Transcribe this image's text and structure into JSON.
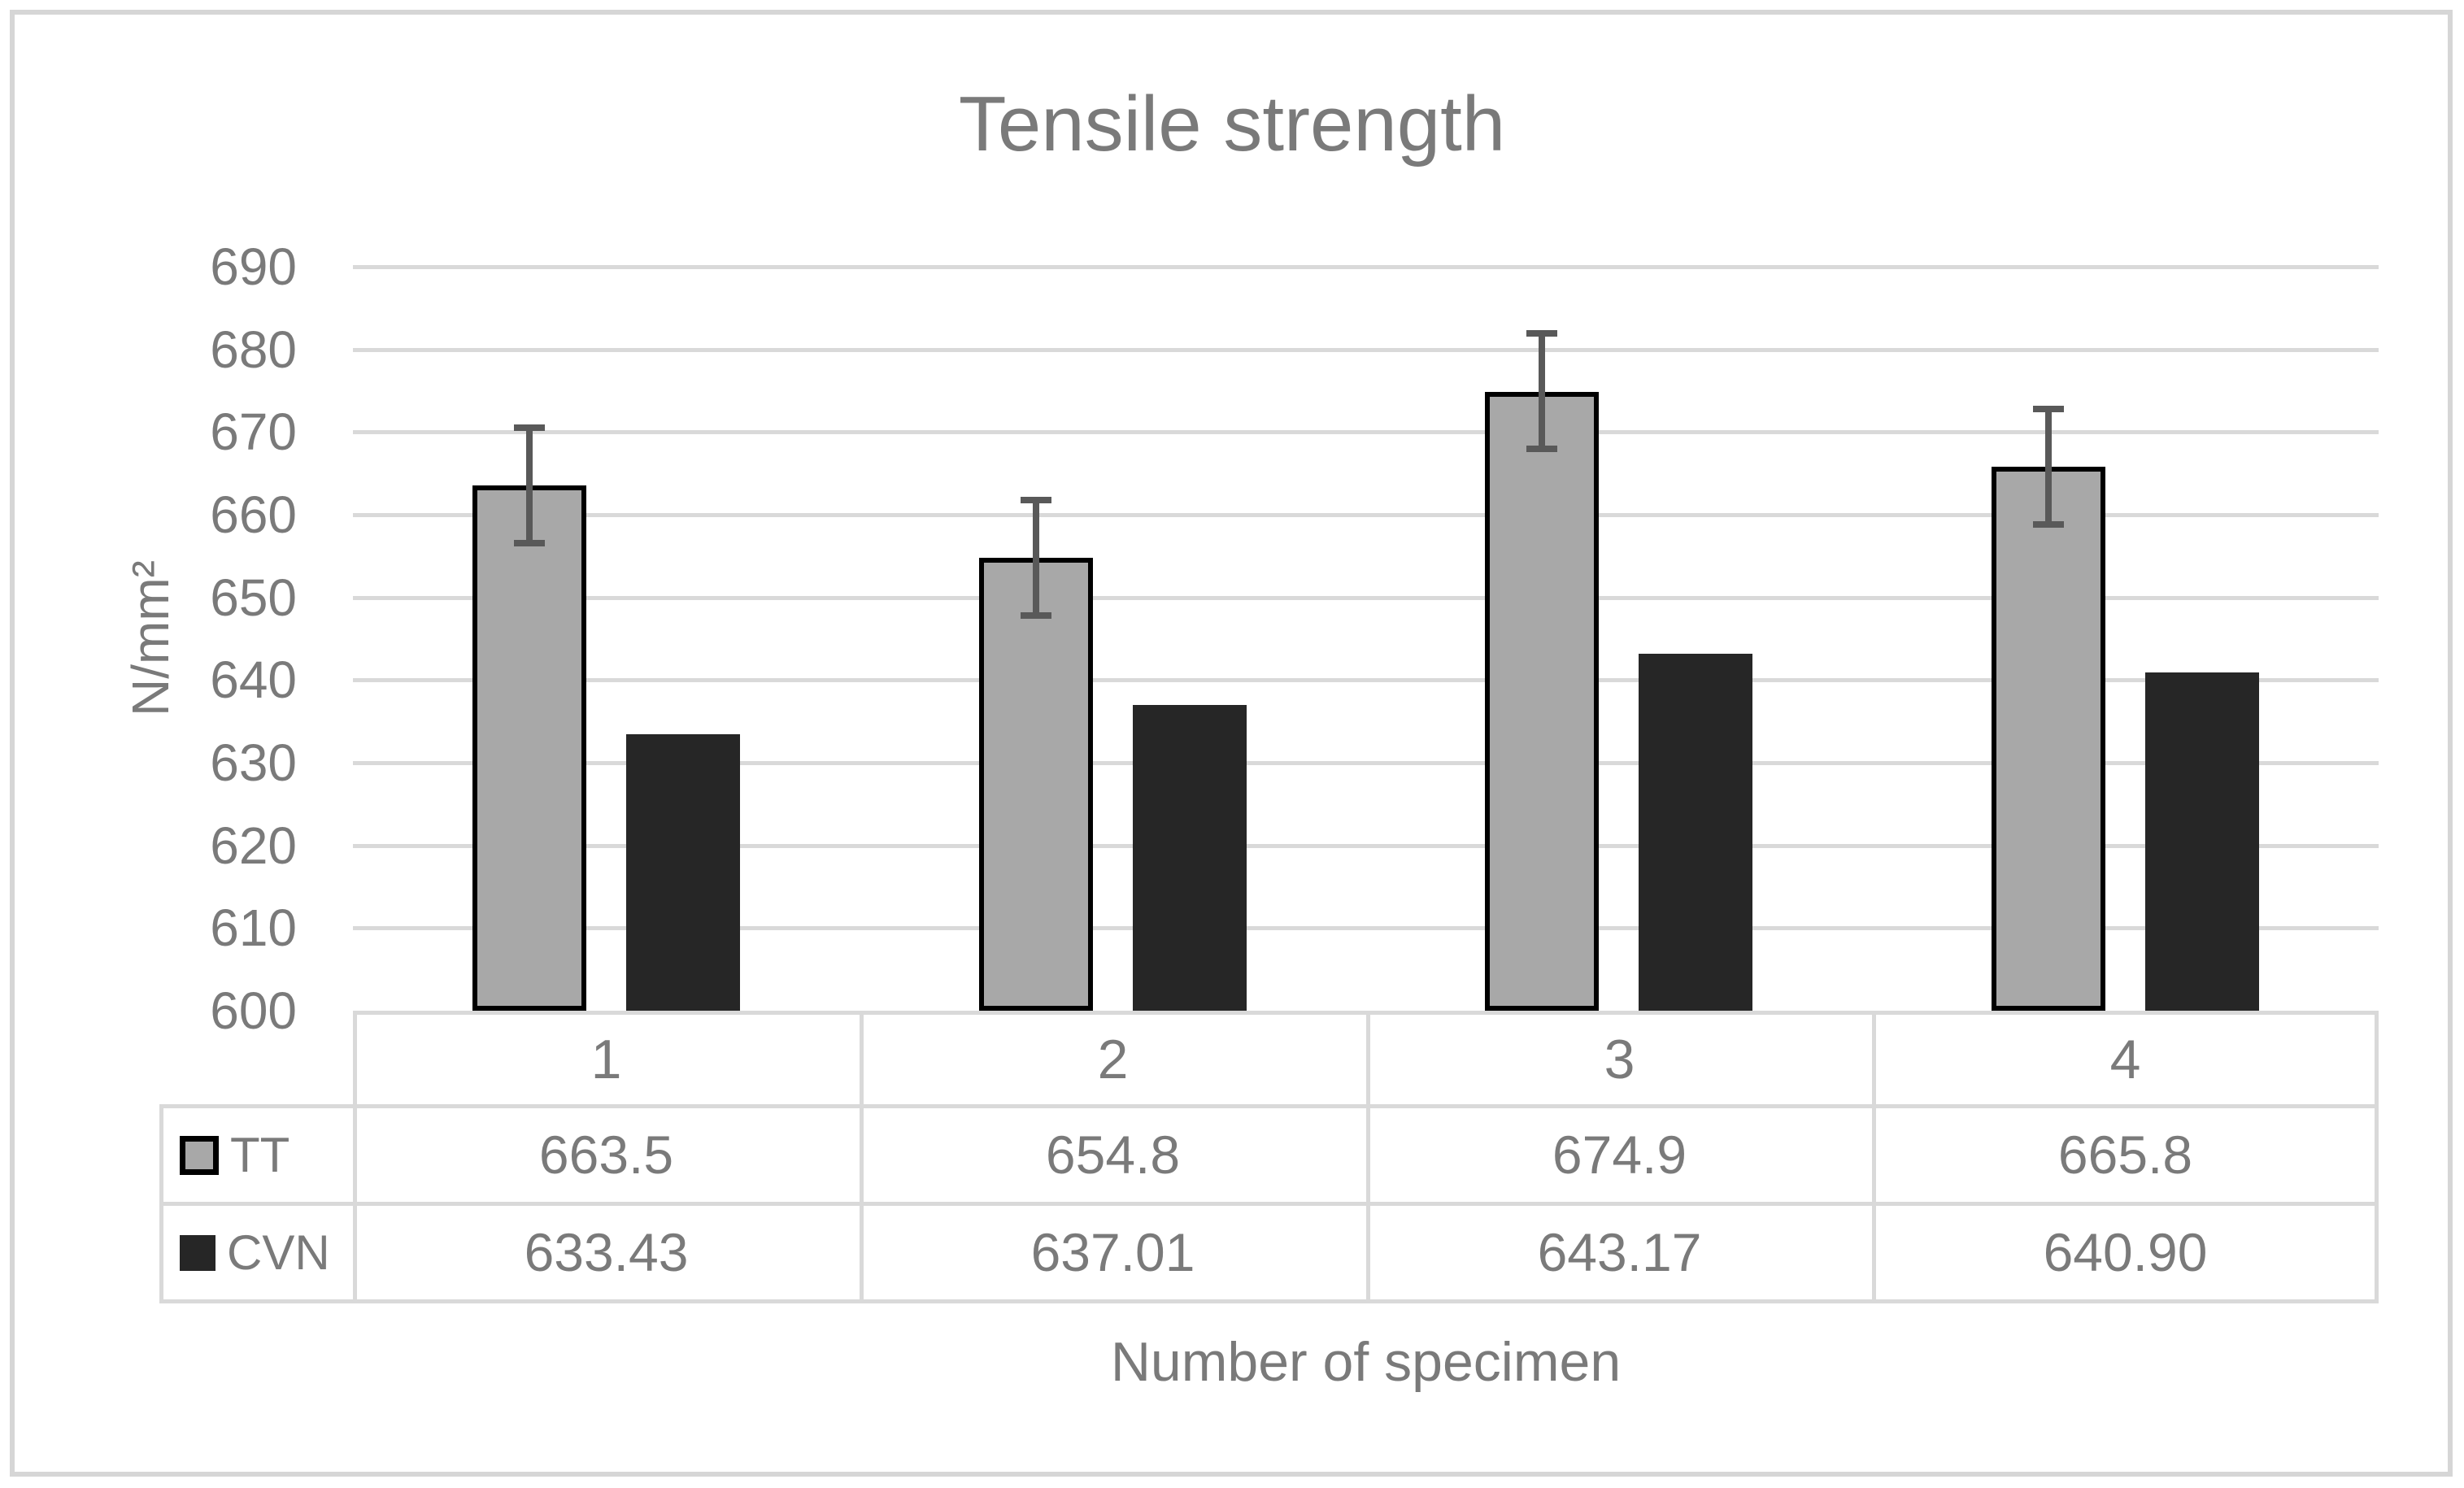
{
  "title": "Tensile strength",
  "chart_data": {
    "type": "bar",
    "title": "Tensile strength",
    "xlabel": "Number of specimen",
    "ylabel": "N/mm²",
    "categories": [
      "1",
      "2",
      "3",
      "4"
    ],
    "series": [
      {
        "name": "TT",
        "values": [
          663.5,
          654.8,
          674.9,
          665.8
        ],
        "display_values": [
          "663.5",
          "654.8",
          "674.9",
          "665.8"
        ],
        "fill_color": "#a8a8a8",
        "border_color": "#000000",
        "error_plus": 7,
        "error_minus": 7
      },
      {
        "name": "CVN",
        "values": [
          633.43,
          637.01,
          643.17,
          640.9
        ],
        "display_values": [
          "633.43",
          "637.01",
          "643.17",
          "640.90"
        ],
        "fill_color": "#262626"
      }
    ],
    "ylim": [
      600,
      690
    ],
    "ytick_step": 10,
    "ytick_labels": [
      "690",
      "680",
      "670",
      "660",
      "650",
      "640",
      "630",
      "620",
      "610",
      "600"
    ],
    "grid": true,
    "gridline_color": "#d9d9d9",
    "error_bar_color": "#595959",
    "text_color": "#7a7a7a",
    "frame_color": "#d6d6d6",
    "legend_position": "data-table-left",
    "data_table_shown": true
  }
}
